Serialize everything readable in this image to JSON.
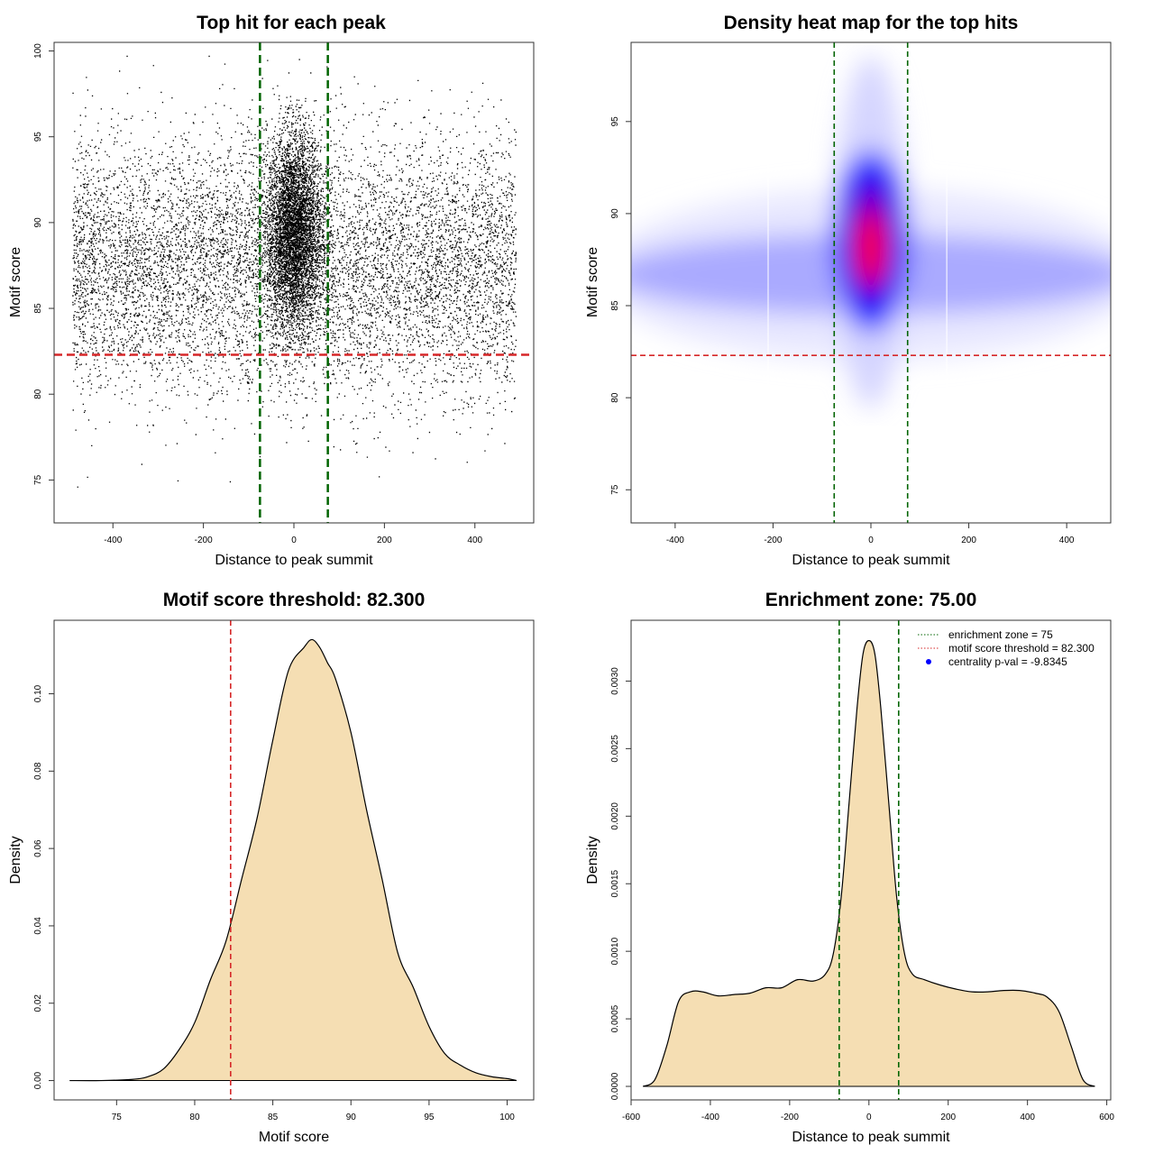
{
  "colors": {
    "zone_line": "#006400",
    "threshold_line": "#d62728",
    "density_fill": "#f5deb3",
    "heat_low": "#ffffff",
    "heat_mid": "#0000ff",
    "heat_high": "#ff0000",
    "points": "#000000"
  },
  "chart_data": [
    {
      "id": "scatter",
      "type": "scatter",
      "title": "Top hit for each peak",
      "xlabel": "Distance to peak summit",
      "ylabel": "Motif score",
      "xlim": [
        -530,
        530
      ],
      "ylim": [
        72.5,
        100.5
      ],
      "xticks": [
        -400,
        -200,
        0,
        200,
        400
      ],
      "yticks": [
        75,
        80,
        85,
        90,
        95,
        100
      ],
      "vlines": [
        -75,
        75
      ],
      "hline": 82.3,
      "point_distribution": {
        "x_range": [
          -490,
          490
        ],
        "background_mean_score": 87.5,
        "background_sd": 3.7,
        "central_mean_score": 89.5,
        "central_sd": 2.8,
        "central_x_sd": 30
      }
    },
    {
      "id": "heatmap",
      "type": "heatmap",
      "title": "Density heat map for the top hits",
      "xlabel": "Distance to peak summit",
      "ylabel": "Motif score",
      "xlim": [
        -490,
        490
      ],
      "ylim": [
        73.2,
        99.3
      ],
      "xticks": [
        -400,
        -200,
        0,
        200,
        400
      ],
      "yticks": [
        75,
        80,
        85,
        90,
        95
      ],
      "vlines": [
        -75,
        75
      ],
      "hline": 82.3,
      "hotspot": {
        "x": 0,
        "y": 88.5
      }
    },
    {
      "id": "score_density",
      "type": "area",
      "title": "Motif score threshold: 82.300",
      "xlabel": "Motif score",
      "ylabel": "Density",
      "xlim": [
        71,
        101.7
      ],
      "ylim": [
        -0.005,
        0.119
      ],
      "xticks": [
        75,
        80,
        85,
        90,
        95,
        100
      ],
      "yticks": [
        0.0,
        0.02,
        0.04,
        0.06,
        0.08,
        0.1
      ],
      "ytick_labels": [
        "0.00",
        "0.02",
        "0.04",
        "0.06",
        "0.08",
        "0.10"
      ],
      "vline": 82.3,
      "x": [
        72,
        74,
        76,
        77,
        78,
        79,
        80,
        81,
        82,
        83,
        84,
        85,
        86,
        87,
        87.5,
        88,
        88.5,
        89,
        90,
        91,
        92,
        93,
        94,
        95,
        96,
        97,
        98,
        99,
        100,
        100.6
      ],
      "y": [
        0.0,
        0.0,
        0.0003,
        0.001,
        0.003,
        0.008,
        0.015,
        0.026,
        0.036,
        0.052,
        0.068,
        0.088,
        0.106,
        0.112,
        0.114,
        0.112,
        0.108,
        0.104,
        0.09,
        0.07,
        0.052,
        0.033,
        0.024,
        0.014,
        0.007,
        0.004,
        0.002,
        0.001,
        0.0005,
        0.0
      ]
    },
    {
      "id": "distance_density",
      "type": "area",
      "title": "Enrichment zone: 75.00",
      "xlabel": "Distance to peak summit",
      "ylabel": "Density",
      "xlim": [
        -600,
        610
      ],
      "ylim": [
        -0.0001,
        0.00345
      ],
      "xticks": [
        -600,
        -400,
        -200,
        0,
        200,
        400,
        600
      ],
      "yticks": [
        0.0,
        0.0005,
        0.001,
        0.0015,
        0.002,
        0.0025,
        0.003
      ],
      "ytick_labels": [
        "0.0000",
        "0.0005",
        "0.0010",
        "0.0015",
        "0.0020",
        "0.0025",
        "0.0030"
      ],
      "vlines": [
        -75,
        75
      ],
      "x": [
        -570,
        -540,
        -510,
        -480,
        -450,
        -420,
        -380,
        -340,
        -300,
        -260,
        -220,
        -180,
        -140,
        -110,
        -90,
        -70,
        -50,
        -30,
        -15,
        0,
        15,
        30,
        50,
        70,
        90,
        110,
        140,
        180,
        220,
        260,
        300,
        340,
        380,
        420,
        450,
        480,
        510,
        540,
        570
      ],
      "y": [
        0.0,
        5e-05,
        0.0003,
        0.00063,
        0.0007,
        0.0007,
        0.00067,
        0.00068,
        0.00069,
        0.00073,
        0.00073,
        0.00079,
        0.00078,
        0.00083,
        0.00098,
        0.0014,
        0.0021,
        0.0028,
        0.0032,
        0.0033,
        0.0032,
        0.0028,
        0.0021,
        0.0014,
        0.00098,
        0.00083,
        0.00079,
        0.00075,
        0.00072,
        0.0007,
        0.0007,
        0.00071,
        0.00071,
        0.00069,
        0.00066,
        0.00055,
        0.0003,
        5e-05,
        0.0
      ],
      "legend": {
        "position": "top-right",
        "entries": [
          {
            "label": "enrichment zone = 75",
            "style": "dotted",
            "color": "#006400"
          },
          {
            "label": "motif score threshold = 82.300",
            "style": "dotted",
            "color": "#d62728"
          },
          {
            "label": "centrality p-val = -9.8345",
            "style": "point",
            "color": "#0000ff"
          }
        ]
      }
    }
  ]
}
